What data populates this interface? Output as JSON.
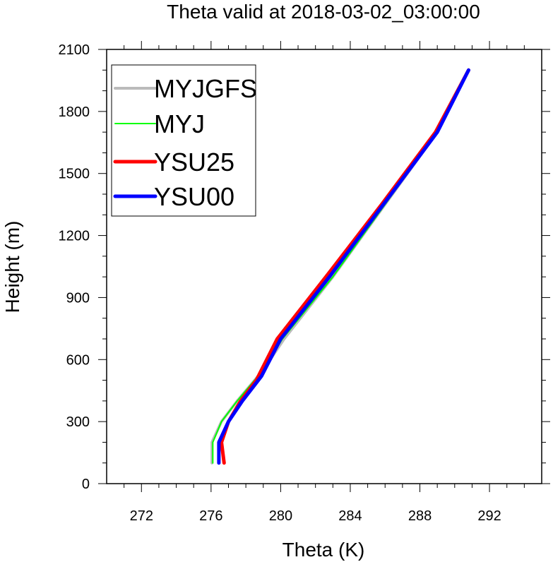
{
  "chart_data": {
    "type": "line",
    "title": "Theta valid at 2018-03-02_03:00:00",
    "xlabel": "Theta (K)",
    "ylabel": "Height (m)",
    "xlim": [
      270,
      295
    ],
    "ylim": [
      0,
      2100
    ],
    "xticks": [
      272,
      276,
      280,
      284,
      288,
      292
    ],
    "yticks": [
      0,
      300,
      600,
      900,
      1200,
      1500,
      1800,
      2100
    ],
    "legend_position": "top-left",
    "series": [
      {
        "name": "MYJGFS",
        "color": "#bbbbbb",
        "x": [
          276.05,
          276.05,
          276.6,
          277.5,
          279.0,
          280.2,
          283.0,
          286.0,
          289.0,
          290.8
        ],
        "y": [
          100,
          200,
          300,
          400,
          550,
          700,
          1000,
          1350,
          1700,
          2000
        ]
      },
      {
        "name": "MYJ",
        "color": "#00ff00",
        "x": [
          276.1,
          276.1,
          276.6,
          277.5,
          279.0,
          280.1,
          283.0,
          286.0,
          289.0,
          290.8
        ],
        "y": [
          100,
          200,
          300,
          400,
          550,
          700,
          1000,
          1350,
          1700,
          2000
        ]
      },
      {
        "name": "YSU25",
        "color": "#ff0000",
        "x": [
          276.75,
          276.6,
          277.0,
          277.7,
          278.6,
          279.8,
          282.6,
          285.8,
          288.9,
          290.8
        ],
        "y": [
          100,
          200,
          300,
          400,
          500,
          700,
          1000,
          1350,
          1700,
          2000
        ]
      },
      {
        "name": "YSU00",
        "color": "#0000ff",
        "x": [
          276.45,
          276.45,
          277.0,
          277.8,
          278.9,
          280.0,
          282.8,
          285.9,
          289.0,
          290.8
        ],
        "y": [
          100,
          200,
          300,
          400,
          520,
          700,
          1000,
          1350,
          1700,
          2000
        ]
      }
    ]
  }
}
